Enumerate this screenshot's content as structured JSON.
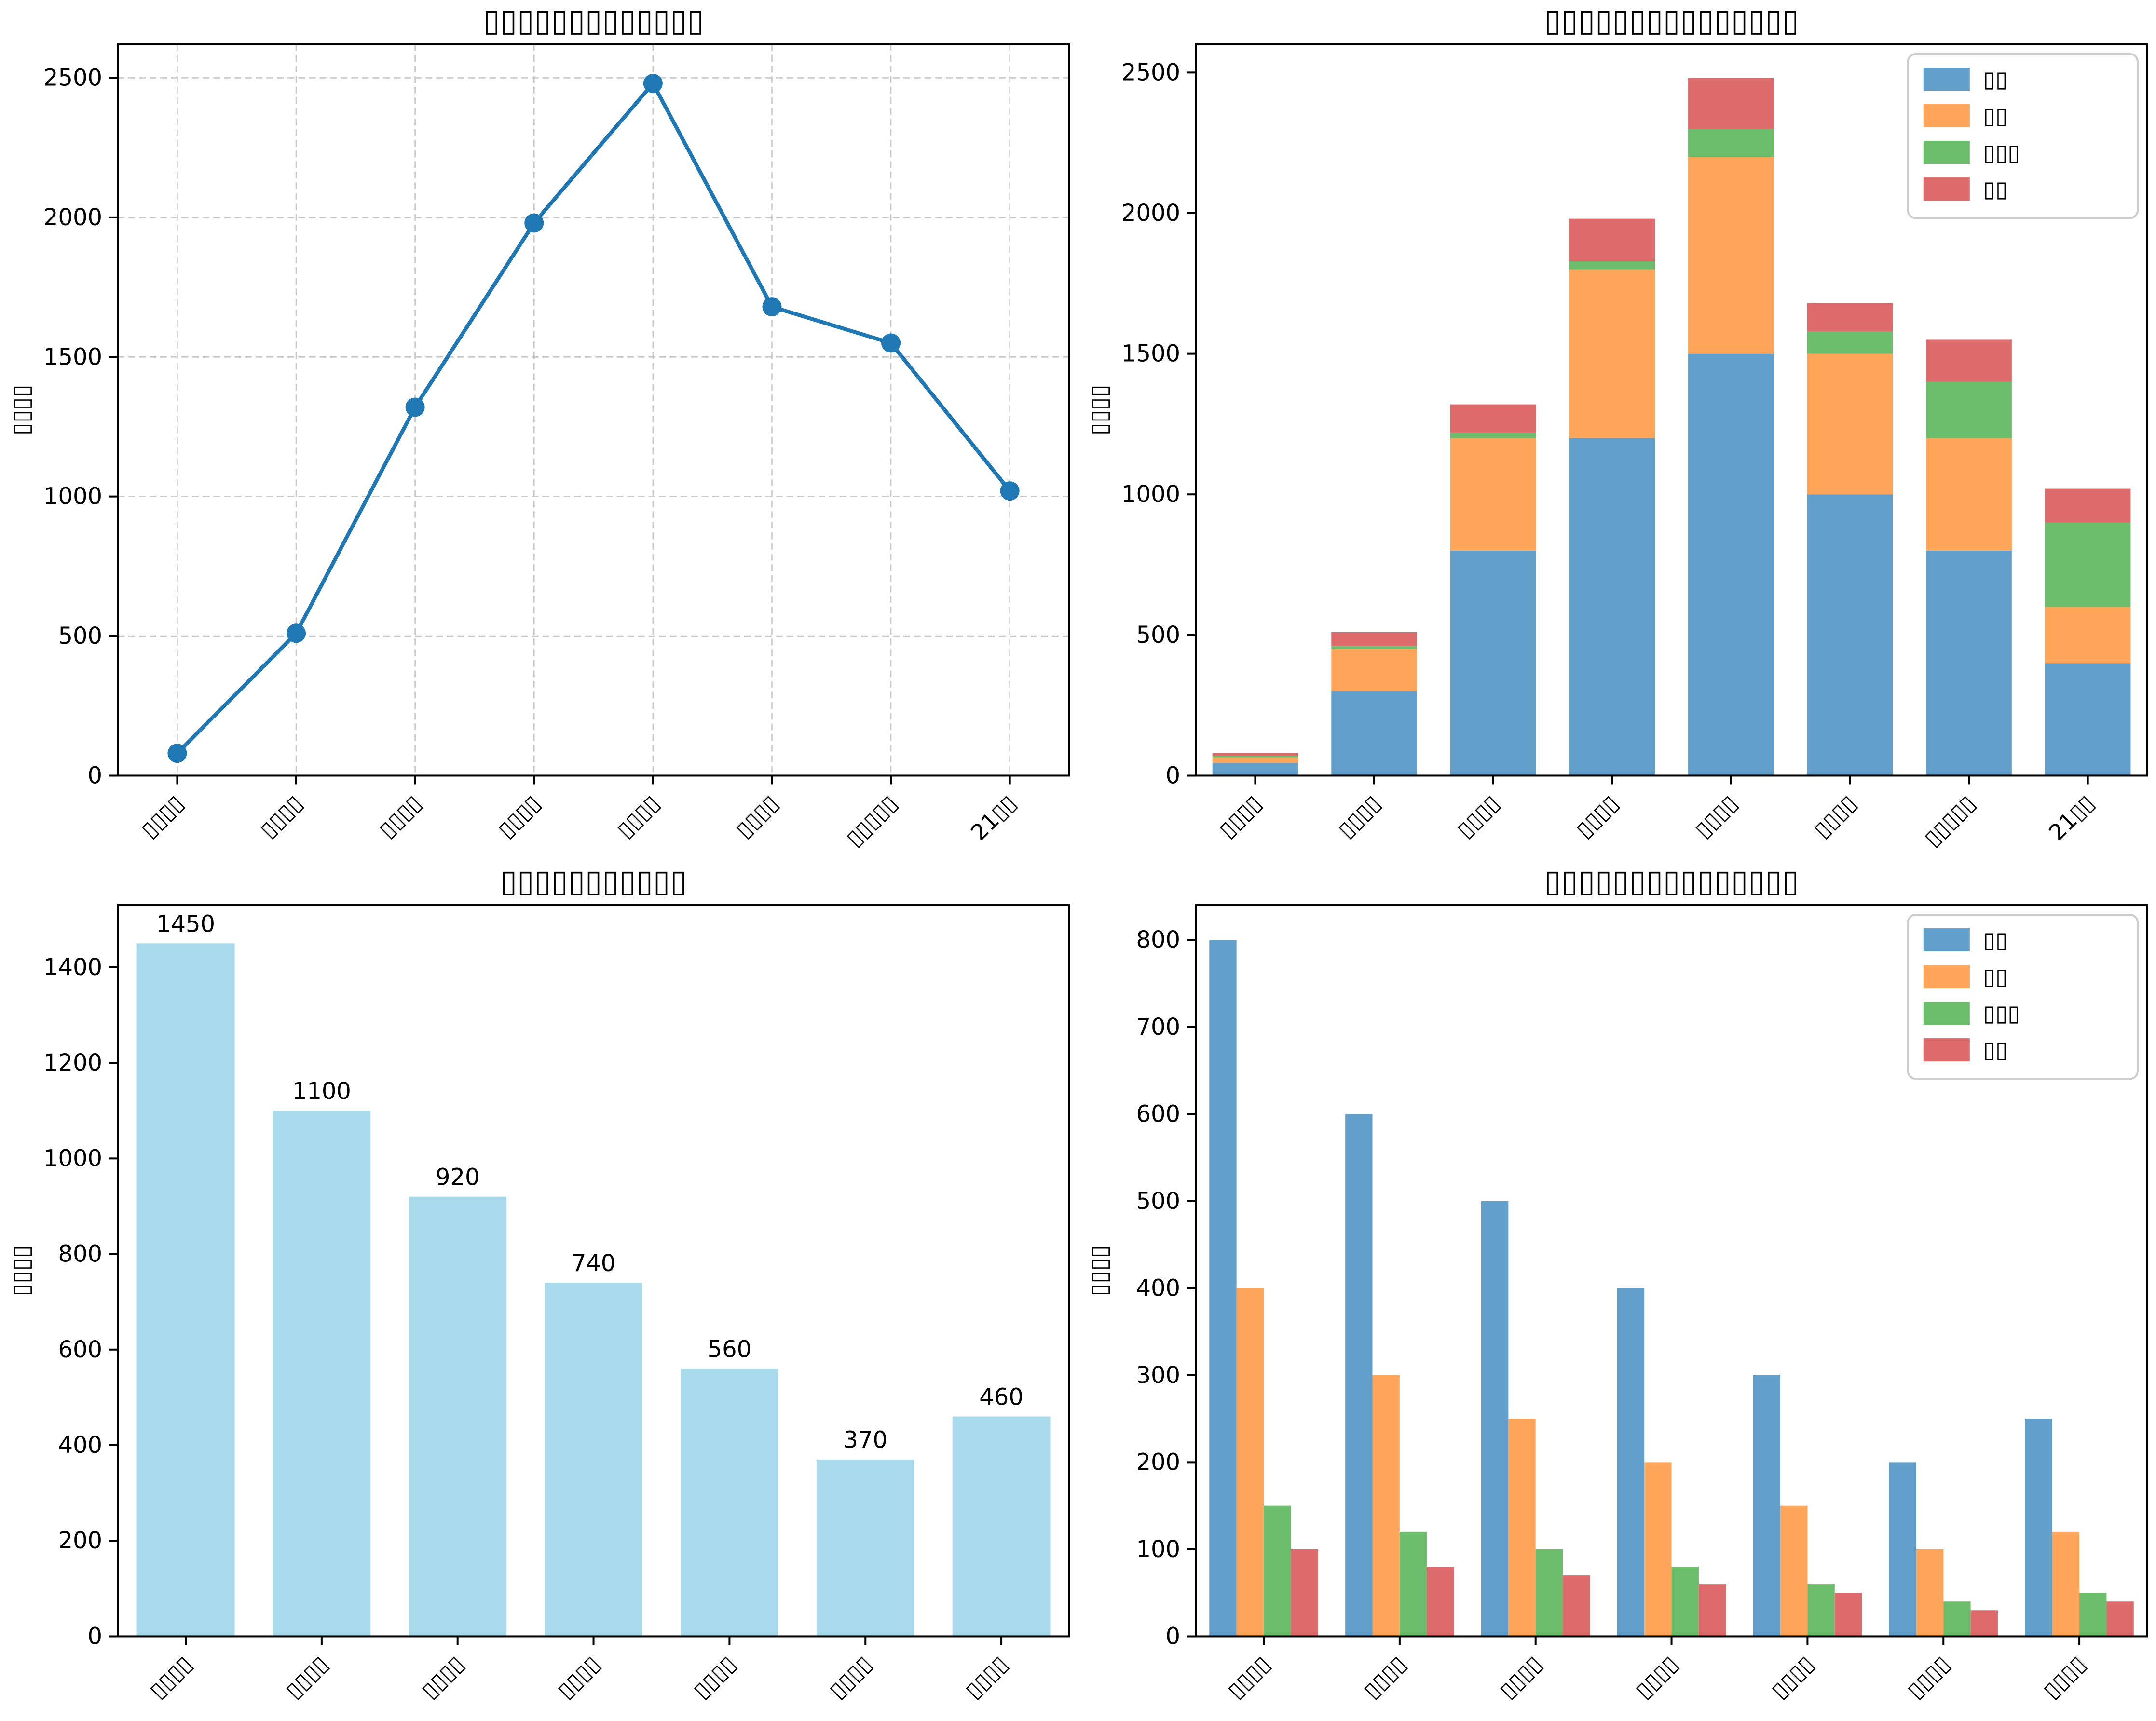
{
  "figure": {
    "background": "#ffffff",
    "grid_layout": "2x2"
  },
  "colors": {
    "line": "#1f77b4",
    "series": [
      "#62A0CB",
      "#FEA55A",
      "#6BBD6B",
      "#DD6B6C"
    ],
    "single_bar": "#A9DAEC",
    "grid_line": "#c8c8c8",
    "spine": "#000000",
    "text": "#000000",
    "legend_border": "#cccccc",
    "legend_background": "#ffffff"
  },
  "chart_data": [
    {
      "type": "line",
      "position": "top-left",
      "title": "▯▯▯▯▯▯▯▯▯▯▯▯▯",
      "ylabel": "▯▯▯▯",
      "categories": [
        "▯▯▯▯",
        "▯▯▯▯",
        "▯▯▯▯",
        "▯▯▯▯",
        "▯▯▯▯",
        "▯▯▯▯",
        "▯▯▯▯▯",
        "21▯▯"
      ],
      "values": [
        80,
        510,
        1320,
        1980,
        2480,
        1680,
        1550,
        1020
      ],
      "yticks": [
        0,
        500,
        1000,
        1500,
        2000,
        2500
      ],
      "ylim": [
        0,
        2620
      ],
      "grid": true,
      "legend": false,
      "marker": "circle",
      "line_color": "#1f77b4"
    },
    {
      "type": "stacked-bar",
      "position": "top-right",
      "title": "▯▯▯▯▯▯▯▯▯▯▯▯▯▯▯",
      "ylabel": "▯▯▯▯",
      "categories": [
        "▯▯▯▯",
        "▯▯▯▯",
        "▯▯▯▯",
        "▯▯▯▯",
        "▯▯▯▯",
        "▯▯▯▯",
        "▯▯▯▯▯",
        "21▯▯"
      ],
      "series": [
        {
          "name": "▯▯",
          "color": "#62A0CB",
          "values": [
            45,
            300,
            800,
            1200,
            1500,
            1000,
            800,
            400
          ]
        },
        {
          "name": "▯▯",
          "color": "#FEA55A",
          "values": [
            20,
            150,
            400,
            600,
            700,
            500,
            400,
            200
          ]
        },
        {
          "name": "▯▯▯",
          "color": "#6BBD6B",
          "values": [
            5,
            10,
            20,
            30,
            100,
            80,
            200,
            300
          ]
        },
        {
          "name": "▯▯",
          "color": "#DD6B6C",
          "values": [
            10,
            50,
            100,
            150,
            180,
            100,
            150,
            120
          ]
        }
      ],
      "yticks": [
        0,
        500,
        1000,
        1500,
        2000,
        2500
      ],
      "ylim": [
        0,
        2600
      ],
      "grid": false,
      "legend": true,
      "legend_position": "upper-right"
    },
    {
      "type": "bar",
      "position": "bottom-left",
      "title": "▯▯▯▯▯▯▯▯▯▯▯",
      "ylabel": "▯▯▯▯",
      "categories": [
        "▯▯▯▯",
        "▯▯▯▯",
        "▯▯▯▯",
        "▯▯▯▯",
        "▯▯▯▯",
        "▯▯▯▯",
        "▯▯▯▯"
      ],
      "values": [
        1450,
        1100,
        920,
        740,
        560,
        370,
        460
      ],
      "value_labels": [
        "1450",
        "1100",
        "920",
        "740",
        "560",
        "370",
        "460"
      ],
      "bar_color": "#A9DAEC",
      "yticks": [
        0,
        200,
        400,
        600,
        800,
        1000,
        1200,
        1400
      ],
      "ylim": [
        0,
        1530
      ],
      "grid": false,
      "legend": false
    },
    {
      "type": "grouped-bar",
      "position": "bottom-right",
      "title": "▯▯▯▯▯▯▯▯▯▯▯▯▯▯▯",
      "ylabel": "▯▯▯▯",
      "categories": [
        "▯▯▯▯",
        "▯▯▯▯",
        "▯▯▯▯",
        "▯▯▯▯",
        "▯▯▯▯",
        "▯▯▯▯",
        "▯▯▯▯"
      ],
      "series": [
        {
          "name": "▯▯",
          "color": "#62A0CB",
          "values": [
            800,
            600,
            500,
            400,
            300,
            200,
            250
          ]
        },
        {
          "name": "▯▯",
          "color": "#FEA55A",
          "values": [
            400,
            300,
            250,
            200,
            150,
            100,
            120
          ]
        },
        {
          "name": "▯▯▯",
          "color": "#6BBD6B",
          "values": [
            150,
            120,
            100,
            80,
            60,
            40,
            50
          ]
        },
        {
          "name": "▯▯",
          "color": "#DD6B6C",
          "values": [
            100,
            80,
            70,
            60,
            50,
            30,
            40
          ]
        }
      ],
      "yticks": [
        0,
        100,
        200,
        300,
        400,
        500,
        600,
        700,
        800
      ],
      "ylim": [
        0,
        840
      ],
      "grid": false,
      "legend": true,
      "legend_position": "upper-right"
    }
  ]
}
